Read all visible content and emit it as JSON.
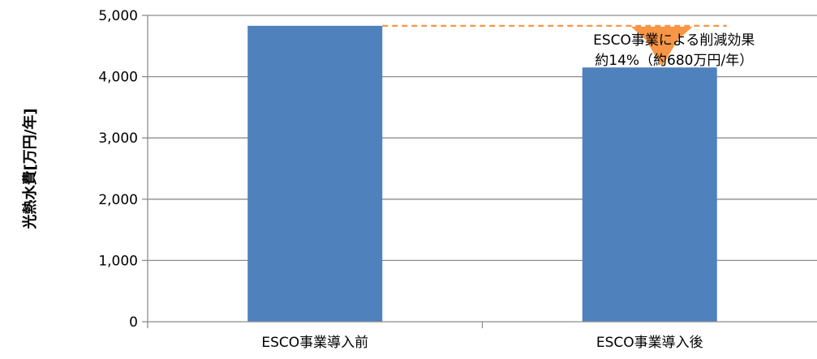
{
  "chart_data": {
    "type": "bar",
    "categories": [
      "ESCO事業導入前",
      "ESCO事業導入後"
    ],
    "values": [
      4830,
      4150
    ],
    "ylabel": "光熱水費[万円/年]",
    "ylim": [
      0,
      5000
    ],
    "yticks": [
      0,
      1000,
      2000,
      3000,
      4000,
      5000
    ],
    "ytick_labels": [
      "0",
      "1,000",
      "2,000",
      "3,000",
      "4,000",
      "5,000"
    ],
    "grid": true,
    "legend": "none",
    "bar_color": "#4F81BD",
    "annotation": {
      "line1": "ESCO事業による削減効果",
      "line2": "約14%（約680万円/年）",
      "color": "#F79646"
    }
  }
}
